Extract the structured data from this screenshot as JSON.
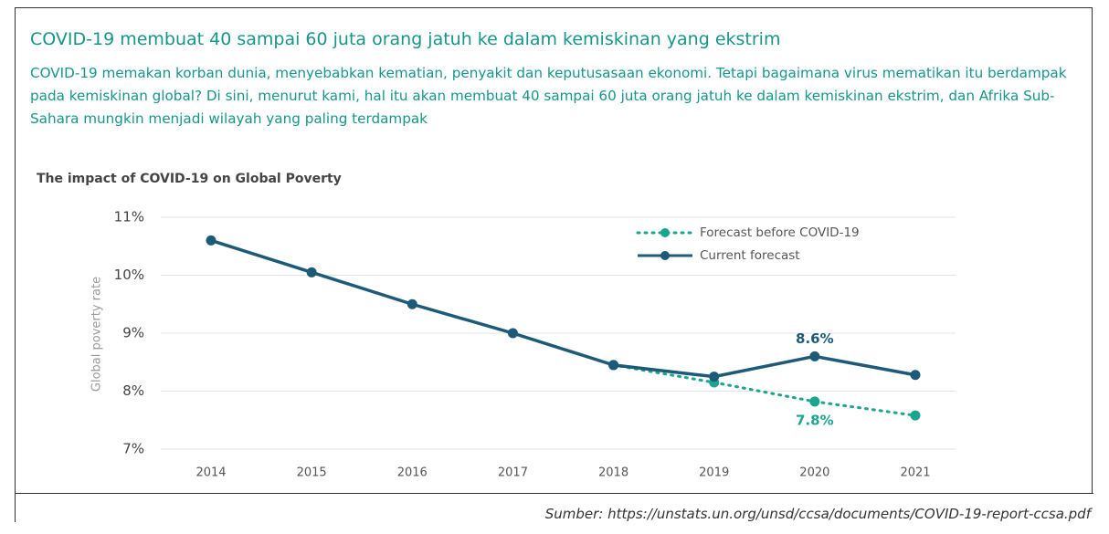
{
  "heading": "COVID-19 membuat 40 sampai 60 juta orang jatuh ke dalam kemiskinan yang ekstrim",
  "description": "COVID-19 memakan korban dunia, menyebabkan kematian, penyakit dan keputusasaan ekonomi. Tetapi bagaimana virus mematikan itu berdampak pada kemiskinan global? Di sini, menurut kami, hal itu akan membuat 40 sampai 60 juta orang jatuh ke dalam kemiskinan ekstrim, dan Afrika Sub-Sahara mungkin menjadi wilayah yang paling terdampak",
  "chart_data": {
    "type": "line",
    "title": "The impact of COVID-19 on Global Poverty",
    "y_label": "Global poverty rate",
    "categories": [
      "2014",
      "2015",
      "2016",
      "2017",
      "2018",
      "2019",
      "2020",
      "2021"
    ],
    "series": [
      {
        "name": "Forecast before COVID-19",
        "color": "#1aa58f",
        "dashed": true,
        "values": [
          null,
          null,
          null,
          null,
          8.45,
          8.15,
          7.82,
          7.58
        ],
        "value_labels": [
          null,
          null,
          null,
          null,
          null,
          null,
          "7.8%",
          null
        ]
      },
      {
        "name": "Current forecast",
        "color": "#1c5a78",
        "dashed": false,
        "values": [
          10.6,
          10.05,
          9.5,
          9.0,
          8.45,
          8.25,
          8.6,
          8.28
        ],
        "value_labels": [
          null,
          null,
          null,
          null,
          null,
          null,
          "8.6%",
          null
        ]
      }
    ],
    "ylim": [
      7,
      11
    ],
    "yticks": [
      {
        "value": 7,
        "label": "7%"
      },
      {
        "value": 8,
        "label": "8%"
      },
      {
        "value": 9,
        "label": "9%"
      },
      {
        "value": 10,
        "label": "10%"
      },
      {
        "value": 11,
        "label": "11%"
      }
    ],
    "grid": true,
    "legend": "upper right"
  },
  "source": "Sumber:  https://unstats.un.org/unsd/ccsa/documents/COVID-19-report-ccsa.pdf"
}
